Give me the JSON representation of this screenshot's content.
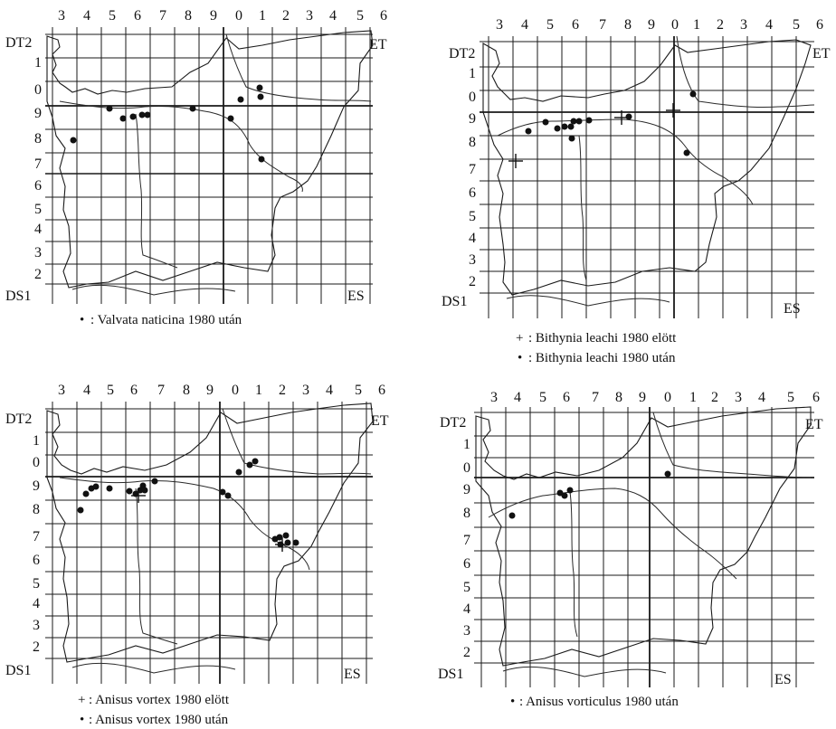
{
  "maps": [
    {
      "id": "valvata",
      "col_labels": [
        "3",
        "4",
        "5",
        "6",
        "7",
        "8",
        "9",
        "0",
        "1",
        "2",
        "3",
        "4",
        "5",
        "6"
      ],
      "row_labels": [
        "1",
        "0",
        "9",
        "8",
        "7",
        "6",
        "5",
        "4",
        "3",
        "2"
      ],
      "top_left_label": "DT2",
      "bottom_left_label": "DS1",
      "top_right_label": "ET",
      "bottom_right_label": "ES",
      "legend": [
        {
          "marker": "dot",
          "symbol_text": "•",
          "text": ":  Valvata naticina  1980 után"
        }
      ]
    },
    {
      "id": "bithynia",
      "col_labels": [
        "3",
        "4",
        "5",
        "6",
        "7",
        "8",
        "9",
        "0",
        "1",
        "2",
        "3",
        "4",
        "5",
        "6"
      ],
      "row_labels": [
        "1",
        "0",
        "9",
        "8",
        "7",
        "6",
        "5",
        "4",
        "3",
        "2"
      ],
      "top_left_label": "DT2",
      "bottom_left_label": "DS1",
      "top_right_label": "ET",
      "bottom_right_label": "ES",
      "legend": [
        {
          "marker": "cross",
          "symbol_text": "+",
          "text": ":  Bithynia leachi  1980 elött"
        },
        {
          "marker": "dot",
          "symbol_text": "•",
          "text": ":  Bithynia leachi  1980 után"
        }
      ]
    },
    {
      "id": "anisus-vortex",
      "col_labels": [
        "3",
        "4",
        "5",
        "6",
        "7",
        "8",
        "9",
        "0",
        "1",
        "2",
        "3",
        "4",
        "5",
        "6"
      ],
      "row_labels": [
        "1",
        "0",
        "9",
        "8",
        "7",
        "6",
        "5",
        "4",
        "3",
        "2"
      ],
      "top_left_label": "DT2",
      "bottom_left_label": "DS1",
      "top_right_label": "ET",
      "bottom_right_label": "ES",
      "legend": [
        {
          "marker": "cross",
          "symbol_text": "+",
          "text": ":  Anisus vortex 1980 elött"
        },
        {
          "marker": "dot",
          "symbol_text": "•",
          "text": ":  Anisus vortex  1980 után"
        }
      ]
    },
    {
      "id": "anisus-vorticulus",
      "col_labels": [
        "3",
        "4",
        "5",
        "6",
        "7",
        "8",
        "9",
        "0",
        "1",
        "2",
        "3",
        "4",
        "5",
        "6"
      ],
      "row_labels": [
        "1",
        "0",
        "9",
        "8",
        "7",
        "6",
        "5",
        "4",
        "3",
        "2"
      ],
      "top_left_label": "DT2",
      "bottom_left_label": "DS1",
      "top_right_label": "ET",
      "bottom_right_label": "ES",
      "legend": [
        {
          "marker": "dot",
          "symbol_text": "•",
          "text": ":  Anisus vorticulus  1980 után"
        }
      ]
    }
  ]
}
